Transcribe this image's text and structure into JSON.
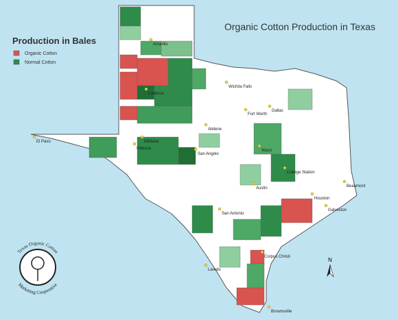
{
  "title": "Organic Cotton Production in Texas",
  "legend": {
    "title": "Production in Bales",
    "items": [
      {
        "name": "Organic Cotton",
        "color": "#d9534f"
      },
      {
        "name": "Normal Cotton",
        "color": "#2e8b4a"
      }
    ]
  },
  "cities": [
    "Amarillo",
    "Lubbock",
    "Wichita Falls",
    "Fort Worth",
    "Dallas",
    "Abilene",
    "Midland",
    "Odessa",
    "El Paso",
    "San Angelo",
    "Waco",
    "College Station",
    "Austin",
    "Beaumont",
    "Houston",
    "Galveston",
    "San Antonio",
    "Corpus Christi",
    "Laredo",
    "Brownsville"
  ],
  "logo": {
    "top": "Texas Organic Cotton",
    "bottom": "Marketing Cooperative"
  },
  "compass": "N"
}
